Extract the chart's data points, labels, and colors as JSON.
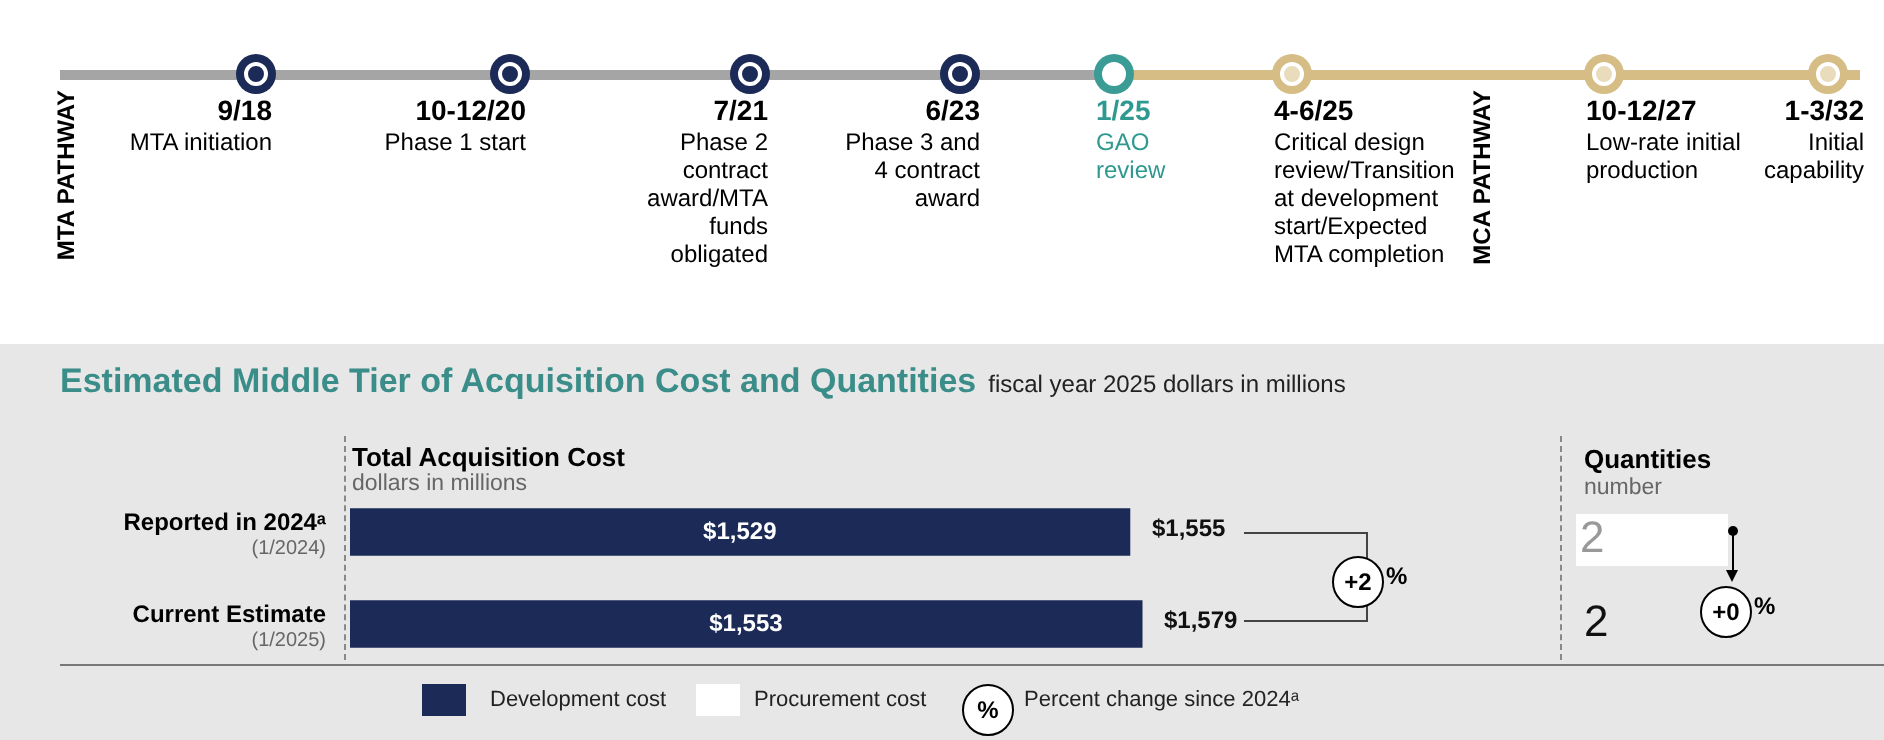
{
  "chart_data": {
    "type": "bar",
    "orientation": "horizontal",
    "title": "Estimated Middle Tier of Acquisition Cost and Quantities",
    "subtitle": "fiscal year 2025 dollars in millions",
    "categories": [
      "Reported in 2024ᵃ\n(1/2024)",
      "Current Estimate\n(1/2025)"
    ],
    "series": [
      {
        "name": "Development cost",
        "color": "#1b2a57",
        "values": [
          1529,
          1553
        ],
        "value_labels": [
          "$1,529",
          "$1,553"
        ]
      }
    ],
    "legend": "bottom",
    "annotations": [
      "MTA PATHWAY",
      "MCA PATHWAY",
      "9/18\nMTA initiation",
      "10-12/20\nPhase 1 start",
      "7/21\nPhase 2 contract award/MTA funds obligated",
      "6/23\nPhase 3 and 4 contract award",
      "1/25\nGAO review",
      "4-6/25\nCritical design review/Transition at development start/Expected MTA completion",
      "10-12/27\nLow-rate initial production",
      "1-3/32\nInitial capability",
      "Total Acquisition Cost",
      "dollars in millions",
      "+2 %",
      "Quantities",
      "number",
      "2",
      "2",
      "+0 %",
      "%",
      "Percent change since 2024ᵃ",
      "Procurement cost",
      "$1,555",
      "$1,579"
    ]
  }
}
